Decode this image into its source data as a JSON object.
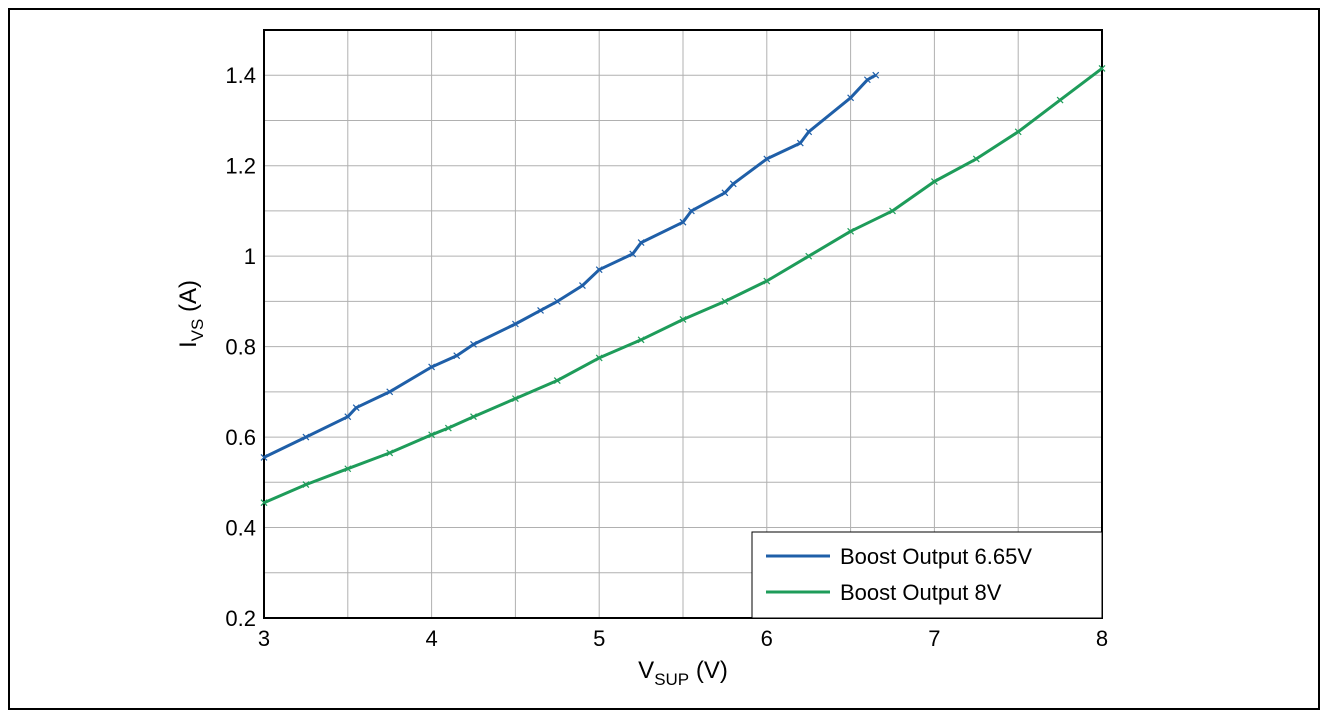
{
  "chart_data": {
    "type": "line",
    "title": "",
    "xlabel": {
      "main": "V",
      "sub": "SUP",
      "unit": " (V)"
    },
    "ylabel": {
      "main": "I",
      "sub": "VS",
      "unit": " (A)"
    },
    "xlim": [
      3,
      8
    ],
    "ylim": [
      0.2,
      1.5
    ],
    "xticks": [
      "3",
      "4",
      "5",
      "6",
      "7",
      "8"
    ],
    "yticks": [
      "0.2",
      "0.4",
      "0.6",
      "0.8",
      "1",
      "1.2",
      "1.4"
    ],
    "grid": true,
    "legend_position": "bottom-right",
    "series": [
      {
        "name": "Boost Output 6.65V",
        "color": "#1f5fa8",
        "x": [
          3.0,
          3.25,
          3.5,
          3.55,
          3.75,
          4.0,
          4.15,
          4.25,
          4.5,
          4.65,
          4.75,
          4.9,
          5.0,
          5.2,
          5.25,
          5.5,
          5.55,
          5.75,
          5.8,
          6.0,
          6.2,
          6.25,
          6.5,
          6.6,
          6.65
        ],
        "y": [
          0.555,
          0.6,
          0.645,
          0.665,
          0.7,
          0.755,
          0.78,
          0.805,
          0.85,
          0.88,
          0.9,
          0.935,
          0.97,
          1.005,
          1.03,
          1.075,
          1.1,
          1.14,
          1.16,
          1.215,
          1.25,
          1.275,
          1.35,
          1.39,
          1.4
        ]
      },
      {
        "name": "Boost Output 8V",
        "color": "#1e9c5a",
        "x": [
          3.0,
          3.25,
          3.5,
          3.75,
          4.0,
          4.1,
          4.25,
          4.5,
          4.75,
          5.0,
          5.25,
          5.5,
          5.75,
          6.0,
          6.25,
          6.5,
          6.75,
          7.0,
          7.25,
          7.5,
          7.75,
          8.0
        ],
        "y": [
          0.455,
          0.495,
          0.53,
          0.565,
          0.605,
          0.62,
          0.645,
          0.685,
          0.725,
          0.775,
          0.815,
          0.86,
          0.9,
          0.945,
          1.0,
          1.055,
          1.1,
          1.165,
          1.215,
          1.275,
          1.345,
          1.415
        ]
      }
    ]
  }
}
